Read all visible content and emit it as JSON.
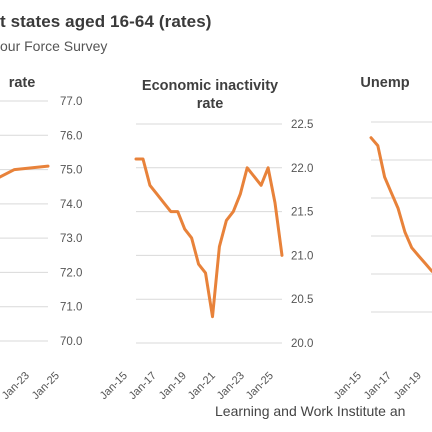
{
  "header": {
    "title": "t states aged 16-64 (rates)",
    "subtitle": "our Force Survey",
    "footer": "Learning and Work Institute an"
  },
  "colors": {
    "series": "#e8823a",
    "grid": "#d9d9d9"
  },
  "chart_data": [
    {
      "type": "line",
      "title": "rate",
      "ylim": [
        70.0,
        77.0
      ],
      "yticks": [
        "77.0",
        "76.0",
        "75.0",
        "74.0",
        "73.0",
        "72.0",
        "71.0",
        "70.0"
      ],
      "xticks": [
        "Jan-23",
        "Jan-25"
      ],
      "x": [
        "Jan-23",
        "Jul-23",
        "Jan-24",
        "Jul-24",
        "Jan-25",
        "Jun-25"
      ],
      "series": [
        {
          "values": [
            75.5,
            75.0,
            74.9,
            74.5,
            75.0,
            75.1
          ]
        }
      ]
    },
    {
      "type": "line",
      "title": "Economic inactivity rate",
      "ylim": [
        20.0,
        22.5
      ],
      "yticks": [
        "22.5",
        "22.0",
        "21.5",
        "21.0",
        "20.5",
        "20.0"
      ],
      "xticks": [
        "Jan-15",
        "Jan-17",
        "Jan-19",
        "Jan-21",
        "Jan-23",
        "Jan-25"
      ],
      "x": [
        "Jan-15",
        "Jul-15",
        "Jan-16",
        "Jul-16",
        "Jan-17",
        "Jul-17",
        "Jan-18",
        "Jul-18",
        "Jan-19",
        "Jul-19",
        "Jan-20",
        "Jul-20",
        "Jan-21",
        "Jul-21",
        "Jan-22",
        "Jul-22",
        "Jan-23",
        "Jul-23",
        "Jan-24",
        "Jul-24",
        "Jan-25",
        "Jun-25"
      ],
      "series": [
        {
          "values": [
            22.1,
            22.1,
            21.8,
            21.7,
            21.6,
            21.5,
            21.5,
            21.3,
            21.2,
            20.9,
            20.8,
            20.3,
            21.1,
            21.4,
            21.5,
            21.7,
            22.0,
            21.9,
            21.8,
            22.0,
            21.6,
            21.0
          ]
        }
      ]
    },
    {
      "type": "line",
      "title": "Unemp",
      "xticks": [
        "Jan-15",
        "Jan-17",
        "Jan-19"
      ],
      "x": [
        "Jan-15",
        "Jul-15",
        "Jan-16",
        "Jul-16",
        "Jan-17",
        "Jul-17",
        "Jan-18",
        "Jul-18",
        "Jan-19",
        "Jul-19"
      ],
      "series": [
        {
          "values": [
            5.6,
            5.5,
            5.1,
            4.9,
            4.7,
            4.4,
            4.2,
            4.1,
            4.0,
            3.9
          ]
        }
      ]
    }
  ]
}
